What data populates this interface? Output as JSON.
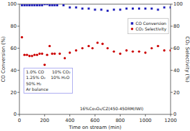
{
  "chart_data": {
    "type": "scatter",
    "xlabel": "Time on stream (min)",
    "ylabel": "CO Conversion (%)",
    "y2label": "CO₂ Selectivity (%)",
    "xlim": [
      0,
      1200
    ],
    "ylim": [
      0,
      100
    ],
    "y2lim": [
      0,
      100
    ],
    "xticks": [
      0,
      200,
      400,
      600,
      800,
      1000,
      1200
    ],
    "yticks": [
      0,
      20,
      40,
      60,
      80,
      100
    ],
    "y2ticks": [
      0,
      20,
      40,
      60,
      80,
      100
    ],
    "legend": "right",
    "series": [
      {
        "name": "CO Conversion",
        "color": "#2222BB",
        "marker": "square",
        "x": [
          20,
          40,
          60,
          80,
          100,
          120,
          140,
          160,
          180,
          200,
          220,
          240,
          260,
          280,
          300,
          350,
          400,
          450,
          500,
          550,
          600,
          650,
          700,
          750,
          800,
          850,
          900,
          950,
          1000,
          1050,
          1100,
          1150,
          1200
        ],
        "values": [
          99,
          99,
          99,
          99,
          99,
          99,
          99,
          99,
          99,
          100,
          100,
          99,
          99,
          99,
          99,
          99,
          97,
          97,
          96,
          96,
          95,
          95,
          94,
          95,
          95,
          96,
          96,
          96,
          96,
          96,
          95,
          97,
          97
        ]
      },
      {
        "name": "CO₂ Selectivity",
        "color": "#CC0000",
        "marker": "circle",
        "axis": "y2",
        "x": [
          20,
          40,
          60,
          80,
          100,
          120,
          140,
          160,
          180,
          200,
          220,
          240,
          260,
          280,
          320,
          360,
          400,
          450,
          500,
          550,
          580,
          620,
          660,
          700,
          750,
          800,
          850,
          900,
          950,
          1000,
          1050,
          1100,
          1150,
          1200
        ],
        "values": [
          70,
          54,
          54,
          53,
          53,
          54,
          54,
          55,
          55,
          45,
          54,
          62,
          55,
          55,
          55,
          51,
          56,
          58,
          60,
          62,
          60,
          65,
          64,
          60,
          57,
          55,
          58,
          57,
          57,
          56,
          60,
          62,
          58,
          58
        ]
      }
    ],
    "annotations": [
      {
        "lines": [
          "1.0% CO      10% CO₂",
          "1.25% O₂    10% H₂O",
          "50% H₂",
          "Ar balance"
        ],
        "color": "#9999ee"
      },
      {
        "text": "16%Co₃O₄/CZ(450-450RM/IWI)"
      }
    ]
  }
}
